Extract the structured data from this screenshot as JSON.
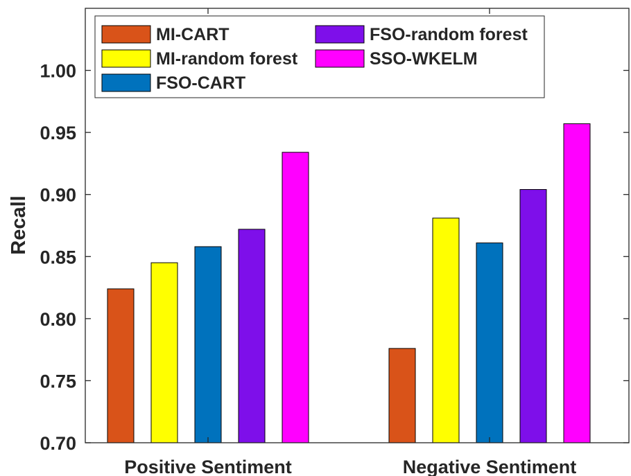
{
  "chart_data": {
    "type": "bar",
    "title": "",
    "xlabel": "",
    "ylabel": "Recall",
    "ylim": [
      0.7,
      1.05
    ],
    "yticks": [
      "0.70",
      "0.75",
      "0.80",
      "0.85",
      "0.90",
      "0.95",
      "1.00"
    ],
    "categories": [
      "Positive Sentiment",
      "Negative Sentiment"
    ],
    "series": [
      {
        "name": "MI-CART",
        "color": "#D95319",
        "values": [
          0.824,
          0.776
        ]
      },
      {
        "name": "MI-random forest",
        "color": "#FFFF00",
        "values": [
          0.845,
          0.881
        ]
      },
      {
        "name": "FSO-CART",
        "color": "#0072BD",
        "values": [
          0.858,
          0.861
        ]
      },
      {
        "name": "FSO-random forest",
        "color": "#7E0FEA",
        "values": [
          0.872,
          0.904
        ]
      },
      {
        "name": "SSO-WKELM",
        "color": "#FF00FF",
        "values": [
          0.934,
          0.957
        ]
      }
    ],
    "legend_position": "top-left",
    "grid": false
  }
}
